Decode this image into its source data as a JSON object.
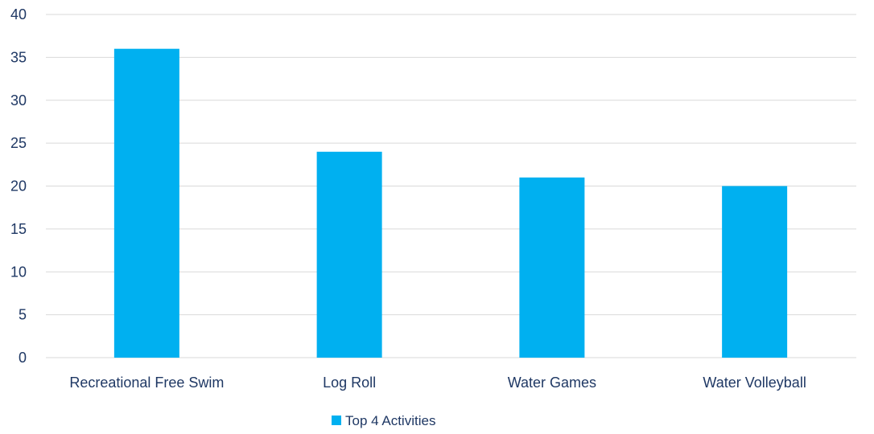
{
  "chart_data": {
    "type": "bar",
    "categories": [
      "Recreational Free Swim",
      "Log Roll",
      "Water Games",
      "Water Volleyball"
    ],
    "series": [
      {
        "name": "Top 4 Activities",
        "values": [
          36,
          24,
          21,
          20
        ],
        "color": "#00b0f0"
      }
    ],
    "ylim": [
      0,
      40
    ],
    "yticks": [
      0,
      5,
      10,
      15,
      20,
      25,
      30,
      35,
      40
    ],
    "grid": true,
    "legend_position": "bottom",
    "colors": {
      "text": "#1f3864",
      "grid": "#d9d9d9"
    }
  }
}
